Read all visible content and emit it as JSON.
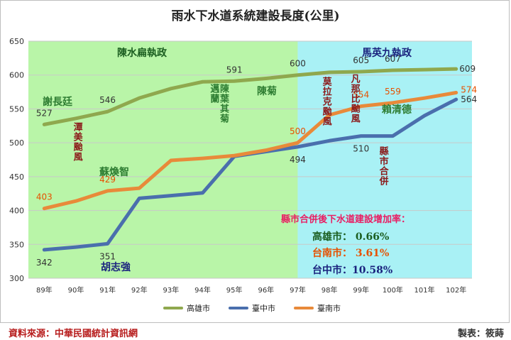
{
  "title": "雨水下水道系統建設長度(公里)",
  "source": "資料來源：中華民國統計資訊網",
  "maker": "製表：筱蒔",
  "colors": {
    "green_bg": "#b9f5a8",
    "cyan_bg": "#a9f1f5",
    "kaohsiung": "#8fa84e",
    "taichung": "#4a6fad",
    "tainan": "#e88a3a"
  },
  "chart_data": {
    "type": "line",
    "categories": [
      "89年",
      "90年",
      "91年",
      "92年",
      "93年",
      "94年",
      "95年",
      "96年",
      "97年",
      "98年",
      "99年",
      "100年",
      "101年",
      "102年"
    ],
    "ylim": [
      300,
      650
    ],
    "yticks": [
      300,
      350,
      400,
      450,
      500,
      550,
      600,
      650
    ],
    "grid": true,
    "legend_position": "bottom",
    "series": [
      {
        "name": "高雄市",
        "values": [
          527,
          536,
          546,
          566,
          580,
          590,
          591,
          595,
          600,
          604,
          605,
          607,
          608,
          609
        ]
      },
      {
        "name": "臺中市",
        "values": [
          342,
          346,
          351,
          418,
          422,
          426,
          480,
          487,
          494,
          503,
          510,
          510,
          540,
          564
        ]
      },
      {
        "name": "臺南市",
        "values": [
          403,
          414,
          429,
          433,
          474,
          477,
          481,
          489,
          500,
          541,
          554,
          559,
          566,
          574
        ]
      }
    ],
    "data_labels": {
      "kaohsiung": [
        "527",
        "546",
        "591",
        "600",
        "605",
        "607",
        "609"
      ],
      "taichung": [
        "342",
        "351",
        "494",
        "510",
        "564"
      ],
      "tainan": [
        "403",
        "429",
        "500",
        "554",
        "559",
        "574"
      ]
    }
  },
  "annotations": {
    "era_left": "陳水扁執政",
    "era_right": "馬英九執政",
    "mayor_kaohsiung_1": "謝長廷",
    "mayor_tainan_1": "蘇煥智",
    "mayor_taichung_1": "胡志強",
    "mayor_kaohsiung_2": "陳菊",
    "mayor_tainan_2": "賴清德",
    "typhoon_1": "潭美颱風",
    "typhoon_2": "陳葉其菊邁蘭",
    "typhoon_3": "莫拉克颱風",
    "typhoon_4": "凡那比颱風",
    "merger": "縣市合併"
  },
  "growth": {
    "title": "縣市合併後下水道建設增加率：",
    "kaohsiung": "高雄市： 0.66%",
    "tainan": "台南市： 3.61%",
    "taichung": "台中市：10.58%"
  }
}
